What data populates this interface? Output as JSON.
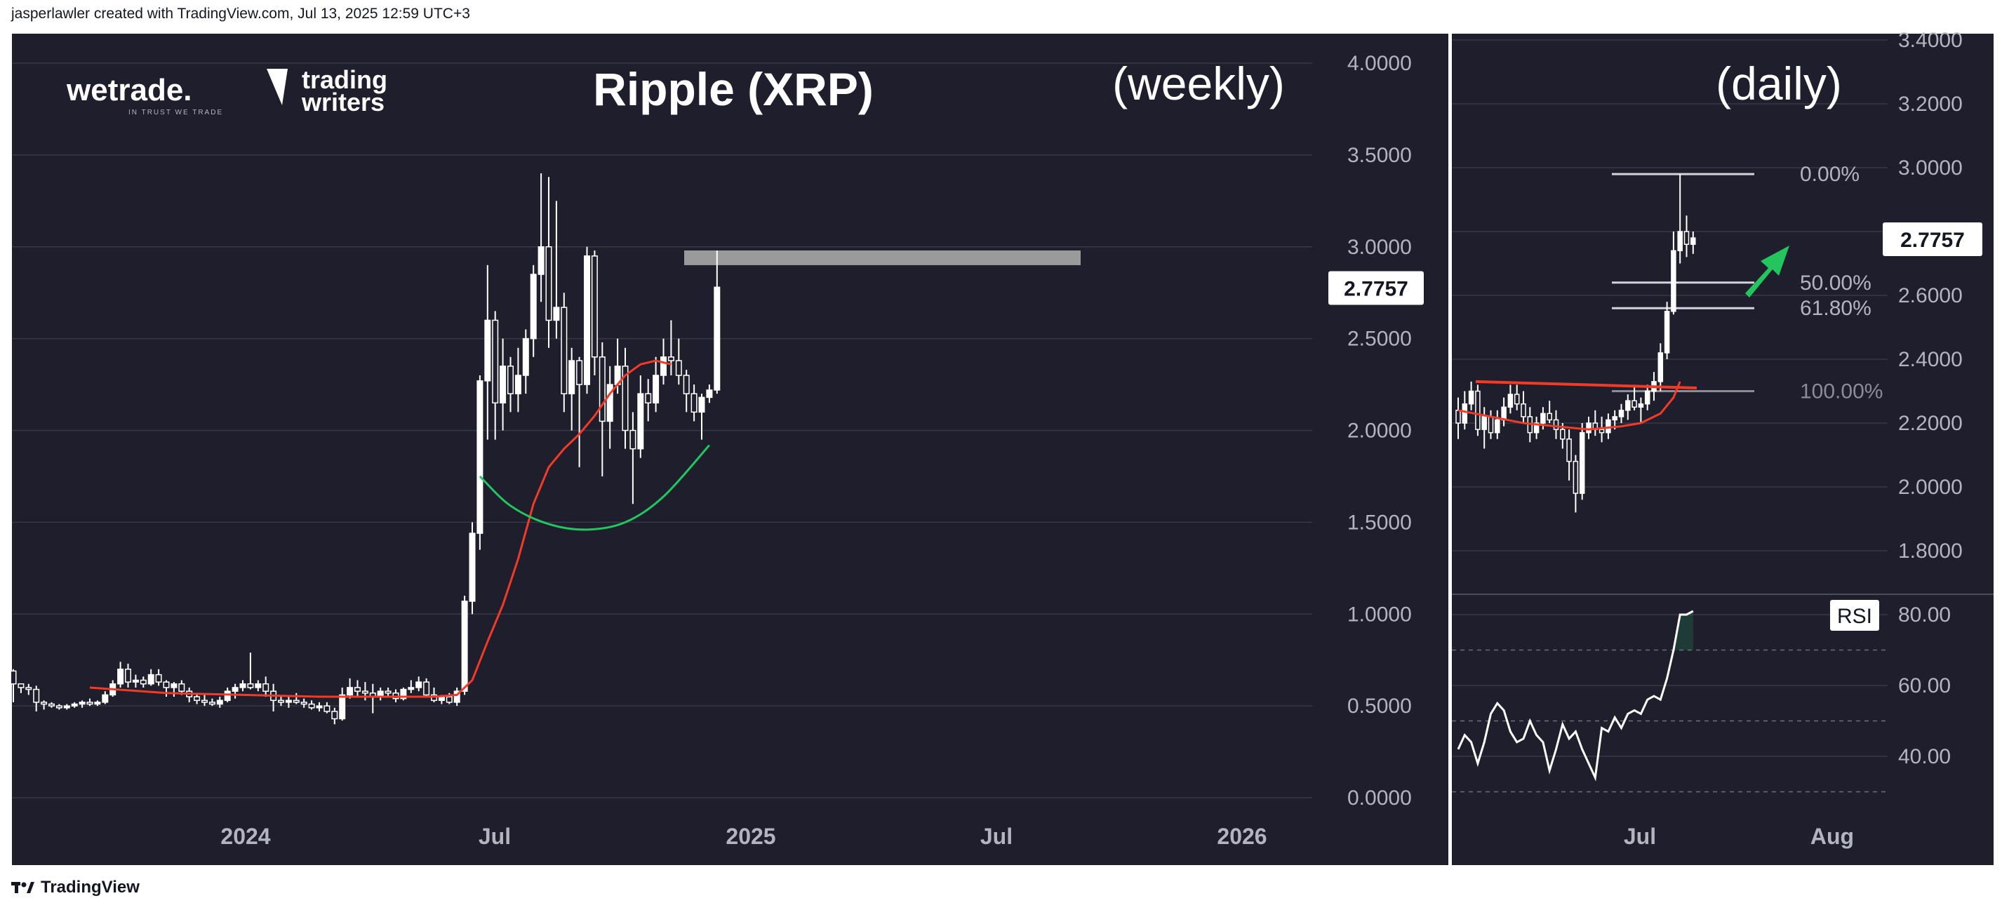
{
  "header": {
    "attribution": "jasperlawler created with TradingView.com, Jul 13, 2025 12:59 UTC+3"
  },
  "footer": {
    "brand": "TradingView"
  },
  "logos": {
    "wetrade": "wetrade.",
    "wetrade_tagline": "IN TRUST WE TRADE",
    "trading_writers_line1": "trading",
    "trading_writers_line2": "writers"
  },
  "colors": {
    "background": "#1e1e2d",
    "grid": "#363a45",
    "axis_text": "#b2b5be",
    "candle": "#ffffff",
    "ma_line": "#f23b27",
    "cup_curve": "#22c55e",
    "arrow": "#22c55e",
    "resistance_band": "#9a9a9a",
    "fib_line": "#d1d4dc"
  },
  "chart_data": [
    {
      "type": "candlestick",
      "title": "Ripple (XRP)",
      "subtitle": "(weekly)",
      "y_ticks": [
        "0.0000",
        "0.5000",
        "1.0000",
        "1.5000",
        "2.0000",
        "2.5000",
        "3.0000",
        "3.5000",
        "4.0000"
      ],
      "ylim": [
        -0.1,
        4.2
      ],
      "x_ticks": [
        "2024",
        "Jul",
        "2025",
        "Jul",
        "2026"
      ],
      "price_label": "2.7757",
      "resistance_zone": [
        2.9,
        2.98
      ],
      "candles": [
        [
          0.69,
          0.7,
          0.52,
          0.62
        ],
        [
          0.62,
          0.62,
          0.57,
          0.6
        ],
        [
          0.6,
          0.62,
          0.56,
          0.59
        ],
        [
          0.59,
          0.61,
          0.47,
          0.52
        ],
        [
          0.52,
          0.53,
          0.48,
          0.51
        ],
        [
          0.51,
          0.52,
          0.49,
          0.5
        ],
        [
          0.5,
          0.51,
          0.48,
          0.49
        ],
        [
          0.49,
          0.51,
          0.48,
          0.5
        ],
        [
          0.5,
          0.52,
          0.49,
          0.51
        ],
        [
          0.51,
          0.53,
          0.49,
          0.52
        ],
        [
          0.52,
          0.54,
          0.5,
          0.51
        ],
        [
          0.51,
          0.53,
          0.5,
          0.52
        ],
        [
          0.52,
          0.58,
          0.51,
          0.56
        ],
        [
          0.56,
          0.64,
          0.55,
          0.62
        ],
        [
          0.62,
          0.74,
          0.6,
          0.7
        ],
        [
          0.7,
          0.73,
          0.6,
          0.63
        ],
        [
          0.63,
          0.67,
          0.6,
          0.64
        ],
        [
          0.64,
          0.66,
          0.6,
          0.62
        ],
        [
          0.62,
          0.7,
          0.61,
          0.67
        ],
        [
          0.67,
          0.7,
          0.61,
          0.63
        ],
        [
          0.63,
          0.64,
          0.55,
          0.6
        ],
        [
          0.6,
          0.63,
          0.55,
          0.62
        ],
        [
          0.62,
          0.64,
          0.56,
          0.58
        ],
        [
          0.58,
          0.6,
          0.52,
          0.55
        ],
        [
          0.55,
          0.57,
          0.51,
          0.53
        ],
        [
          0.53,
          0.56,
          0.5,
          0.52
        ],
        [
          0.52,
          0.54,
          0.5,
          0.51
        ],
        [
          0.51,
          0.55,
          0.49,
          0.53
        ],
        [
          0.53,
          0.6,
          0.52,
          0.58
        ],
        [
          0.58,
          0.62,
          0.54,
          0.6
        ],
        [
          0.6,
          0.64,
          0.58,
          0.62
        ],
        [
          0.62,
          0.79,
          0.59,
          0.6
        ],
        [
          0.6,
          0.64,
          0.58,
          0.62
        ],
        [
          0.62,
          0.66,
          0.55,
          0.58
        ],
        [
          0.58,
          0.62,
          0.47,
          0.53
        ],
        [
          0.53,
          0.56,
          0.5,
          0.52
        ],
        [
          0.52,
          0.55,
          0.49,
          0.53
        ],
        [
          0.53,
          0.57,
          0.51,
          0.52
        ],
        [
          0.52,
          0.54,
          0.49,
          0.51
        ],
        [
          0.51,
          0.53,
          0.48,
          0.49
        ],
        [
          0.49,
          0.52,
          0.47,
          0.5
        ],
        [
          0.5,
          0.52,
          0.46,
          0.47
        ],
        [
          0.47,
          0.49,
          0.4,
          0.43
        ],
        [
          0.43,
          0.6,
          0.42,
          0.56
        ],
        [
          0.56,
          0.65,
          0.54,
          0.6
        ],
        [
          0.6,
          0.64,
          0.55,
          0.58
        ],
        [
          0.58,
          0.63,
          0.53,
          0.57
        ],
        [
          0.57,
          0.62,
          0.46,
          0.55
        ],
        [
          0.55,
          0.6,
          0.53,
          0.58
        ],
        [
          0.58,
          0.6,
          0.55,
          0.57
        ],
        [
          0.57,
          0.59,
          0.52,
          0.54
        ],
        [
          0.54,
          0.6,
          0.53,
          0.59
        ],
        [
          0.59,
          0.64,
          0.57,
          0.6
        ],
        [
          0.6,
          0.66,
          0.58,
          0.63
        ],
        [
          0.63,
          0.65,
          0.55,
          0.56
        ],
        [
          0.56,
          0.6,
          0.52,
          0.53
        ],
        [
          0.53,
          0.56,
          0.51,
          0.55
        ],
        [
          0.55,
          0.57,
          0.51,
          0.52
        ],
        [
          0.52,
          0.6,
          0.5,
          0.58
        ],
        [
          0.58,
          1.1,
          0.56,
          1.07
        ],
        [
          1.07,
          1.5,
          1.0,
          1.44
        ],
        [
          1.44,
          2.3,
          1.35,
          2.27
        ],
        [
          2.27,
          2.9,
          1.95,
          2.6
        ],
        [
          2.6,
          2.65,
          1.95,
          2.15
        ],
        [
          2.15,
          2.5,
          2.0,
          2.35
        ],
        [
          2.35,
          2.4,
          2.1,
          2.2
        ],
        [
          2.2,
          2.45,
          2.1,
          2.3
        ],
        [
          2.3,
          2.55,
          2.2,
          2.5
        ],
        [
          2.5,
          2.9,
          2.4,
          2.85
        ],
        [
          2.85,
          3.4,
          2.7,
          3.0
        ],
        [
          3.0,
          3.38,
          2.45,
          2.6
        ],
        [
          2.6,
          3.25,
          2.5,
          2.67
        ],
        [
          2.67,
          2.75,
          2.1,
          2.2
        ],
        [
          2.2,
          2.45,
          2.0,
          2.38
        ],
        [
          2.38,
          2.4,
          1.8,
          2.25
        ],
        [
          2.25,
          3.0,
          2.2,
          2.95
        ],
        [
          2.95,
          2.98,
          2.3,
          2.4
        ],
        [
          2.4,
          2.48,
          1.75,
          2.05
        ],
        [
          2.05,
          2.35,
          1.9,
          2.25
        ],
        [
          2.25,
          2.5,
          2.2,
          2.35
        ],
        [
          2.35,
          2.45,
          1.9,
          2.0
        ],
        [
          2.0,
          2.1,
          1.6,
          1.9
        ],
        [
          1.9,
          2.3,
          1.85,
          2.2
        ],
        [
          2.2,
          2.28,
          2.05,
          2.15
        ],
        [
          2.15,
          2.4,
          2.1,
          2.3
        ],
        [
          2.3,
          2.5,
          2.25,
          2.4
        ],
        [
          2.4,
          2.6,
          2.3,
          2.38
        ],
        [
          2.38,
          2.5,
          2.25,
          2.3
        ],
        [
          2.3,
          2.33,
          2.1,
          2.2
        ],
        [
          2.2,
          2.25,
          2.05,
          2.1
        ],
        [
          2.1,
          2.2,
          1.95,
          2.18
        ],
        [
          2.18,
          2.25,
          2.15,
          2.22
        ],
        [
          2.22,
          2.98,
          2.2,
          2.78
        ]
      ],
      "ma_line": [
        [
          10,
          0.6
        ],
        [
          20,
          0.57
        ],
        [
          30,
          0.56
        ],
        [
          40,
          0.55
        ],
        [
          50,
          0.55
        ],
        [
          55,
          0.55
        ],
        [
          58,
          0.56
        ],
        [
          60,
          0.64
        ],
        [
          62,
          0.85
        ],
        [
          64,
          1.05
        ],
        [
          66,
          1.3
        ],
        [
          68,
          1.6
        ],
        [
          70,
          1.8
        ],
        [
          72,
          1.9
        ],
        [
          74,
          1.98
        ],
        [
          76,
          2.08
        ],
        [
          78,
          2.2
        ],
        [
          80,
          2.3
        ],
        [
          82,
          2.36
        ],
        [
          84,
          2.38
        ],
        [
          86,
          2.36
        ]
      ],
      "cup_curve": [
        [
          61,
          1.75
        ],
        [
          65,
          1.59
        ],
        [
          70,
          1.49
        ],
        [
          75,
          1.46
        ],
        [
          80,
          1.5
        ],
        [
          85,
          1.64
        ],
        [
          91,
          1.92
        ]
      ]
    },
    {
      "type": "candlestick",
      "subtitle": "(daily)",
      "y_ticks": [
        "1.8000",
        "2.0000",
        "2.2000",
        "2.4000",
        "2.6000",
        "2.8000",
        "3.0000",
        "3.2000",
        "3.4000"
      ],
      "ylim": [
        1.7,
        3.4
      ],
      "x_ticks": [
        "Jul",
        "Aug"
      ],
      "price_label": "2.7757",
      "fib_levels": [
        {
          "label": "0.00%",
          "value": 2.98
        },
        {
          "label": "50.00%",
          "value": 2.64
        },
        {
          "label": "61.80%",
          "value": 2.56
        },
        {
          "label": "100.00%",
          "value": 2.3
        }
      ],
      "resistance_line": 2.33,
      "candles": [
        [
          2.24,
          2.28,
          2.15,
          2.2
        ],
        [
          2.2,
          2.3,
          2.18,
          2.26
        ],
        [
          2.26,
          2.33,
          2.24,
          2.3
        ],
        [
          2.3,
          2.32,
          2.16,
          2.18
        ],
        [
          2.18,
          2.25,
          2.12,
          2.22
        ],
        [
          2.22,
          2.24,
          2.15,
          2.17
        ],
        [
          2.17,
          2.24,
          2.15,
          2.21
        ],
        [
          2.21,
          2.28,
          2.19,
          2.25
        ],
        [
          2.25,
          2.32,
          2.23,
          2.29
        ],
        [
          2.29,
          2.32,
          2.24,
          2.26
        ],
        [
          2.26,
          2.3,
          2.2,
          2.22
        ],
        [
          2.22,
          2.25,
          2.14,
          2.17
        ],
        [
          2.17,
          2.22,
          2.15,
          2.2
        ],
        [
          2.2,
          2.25,
          2.18,
          2.23
        ],
        [
          2.23,
          2.27,
          2.2,
          2.21
        ],
        [
          2.21,
          2.24,
          2.15,
          2.18
        ],
        [
          2.18,
          2.2,
          2.12,
          2.15
        ],
        [
          2.15,
          2.18,
          2.02,
          2.08
        ],
        [
          2.08,
          2.1,
          1.92,
          1.98
        ],
        [
          1.98,
          2.2,
          1.96,
          2.17
        ],
        [
          2.17,
          2.22,
          2.15,
          2.2
        ],
        [
          2.2,
          2.24,
          2.16,
          2.18
        ],
        [
          2.18,
          2.22,
          2.14,
          2.17
        ],
        [
          2.17,
          2.23,
          2.15,
          2.21
        ],
        [
          2.21,
          2.24,
          2.18,
          2.22
        ],
        [
          2.22,
          2.26,
          2.2,
          2.24
        ],
        [
          2.24,
          2.29,
          2.21,
          2.27
        ],
        [
          2.27,
          2.32,
          2.24,
          2.25
        ],
        [
          2.25,
          2.28,
          2.2,
          2.26
        ],
        [
          2.26,
          2.32,
          2.24,
          2.3
        ],
        [
          2.3,
          2.36,
          2.27,
          2.33
        ],
        [
          2.33,
          2.45,
          2.3,
          2.42
        ],
        [
          2.42,
          2.58,
          2.4,
          2.55
        ],
        [
          2.55,
          2.8,
          2.54,
          2.74
        ],
        [
          2.74,
          2.98,
          2.7,
          2.8
        ],
        [
          2.8,
          2.85,
          2.72,
          2.76
        ],
        [
          2.76,
          2.8,
          2.73,
          2.78
        ]
      ],
      "ma_line": [
        [
          0,
          2.24
        ],
        [
          5,
          2.22
        ],
        [
          10,
          2.2
        ],
        [
          15,
          2.19
        ],
        [
          20,
          2.18
        ],
        [
          25,
          2.19
        ],
        [
          28,
          2.2
        ],
        [
          31,
          2.23
        ],
        [
          33,
          2.28
        ],
        [
          34,
          2.33
        ]
      ],
      "rsi": {
        "label": "RSI",
        "y_ticks": [
          "40.00",
          "60.00",
          "80.00"
        ],
        "ylim": [
          28,
          86
        ],
        "levels": [
          70,
          30,
          50
        ],
        "values": [
          42,
          46,
          44,
          38,
          44,
          52,
          55,
          53,
          47,
          44,
          45,
          50,
          46,
          44,
          36,
          42,
          49,
          45,
          47,
          42,
          38,
          34,
          48,
          47,
          51,
          48,
          52,
          53,
          52,
          56,
          57,
          56,
          62,
          70,
          80,
          80,
          81
        ]
      }
    }
  ]
}
